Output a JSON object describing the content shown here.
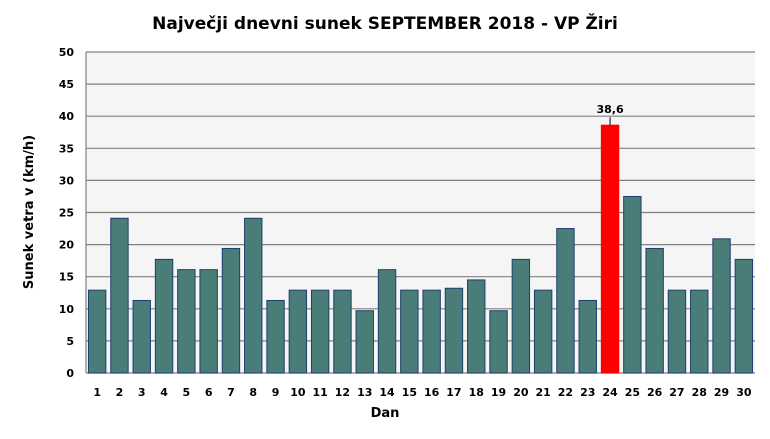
{
  "chart_data": {
    "type": "bar",
    "title": "Največji dnevni sunek SEPTEMBER  2018 - VP Žiri",
    "xlabel": "Dan",
    "ylabel": "Sunek vetra  v (km/h)",
    "ylim": [
      0,
      50
    ],
    "yticks": [
      0,
      5,
      10,
      15,
      20,
      25,
      30,
      35,
      40,
      45,
      50
    ],
    "grid": true,
    "categories": [
      "1",
      "2",
      "3",
      "4",
      "5",
      "6",
      "7",
      "8",
      "9",
      "10",
      "11",
      "12",
      "13",
      "14",
      "15",
      "16",
      "17",
      "18",
      "19",
      "20",
      "21",
      "22",
      "23",
      "24",
      "25",
      "26",
      "27",
      "28",
      "29",
      "30"
    ],
    "values": [
      12.9,
      24.1,
      11.3,
      17.7,
      16.1,
      16.1,
      19.4,
      24.1,
      11.3,
      12.9,
      12.9,
      12.9,
      9.7,
      16.1,
      12.9,
      12.9,
      13.2,
      14.5,
      9.7,
      17.7,
      12.9,
      22.5,
      11.3,
      38.6,
      27.5,
      19.4,
      12.9,
      12.9,
      20.9,
      17.7
    ],
    "max_label": "38,6",
    "max_index": 23,
    "colors": {
      "bar": "#4a7c78",
      "bar_edge": "#1f3f6e",
      "max_bar": "#ff0000",
      "plot_bg": "#f5f5f5",
      "grid": "#808080"
    }
  }
}
